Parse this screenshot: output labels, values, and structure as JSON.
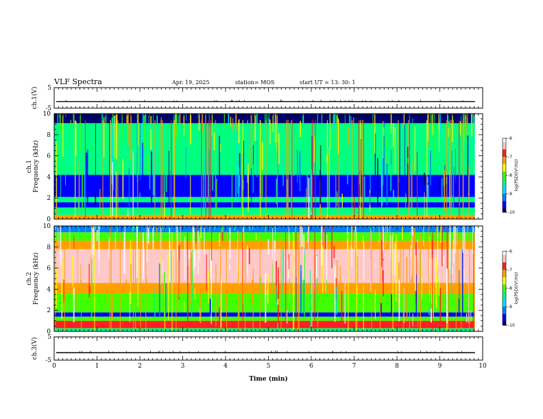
{
  "header": {
    "title": "VLF Spectra",
    "date": "Apr. 19, 2025",
    "station": "station= MOS",
    "start": "start  UT  =   13: 30: 1"
  },
  "colors": {
    "colormap": [
      "#00006a",
      "#0000ff",
      "#0080ff",
      "#00e0ff",
      "#00ff80",
      "#40ff00",
      "#ffff00",
      "#ffa000",
      "#ff2020",
      "#ffc8c8",
      "#ffffff"
    ],
    "trace": "#000000"
  },
  "chart_data": [
    {
      "type": "line",
      "ylabel": "ch.1(V)",
      "ylim": [
        -5,
        5
      ],
      "yticks": [
        "5",
        "-5"
      ],
      "xlim": [
        0,
        10
      ],
      "baseline": -1.8
    },
    {
      "type": "heatmap",
      "ylabel": "ch.1\nFrequency (kHz)",
      "ylabel_top": "ch.1",
      "ylabel_bottom": "Frequency (kHz)",
      "xlim": [
        0,
        10
      ],
      "ylim": [
        0,
        10
      ],
      "yticks": [
        "0",
        "2",
        "4",
        "6",
        "8",
        "10"
      ],
      "data_end_min": 9.82,
      "bands": [
        {
          "from": 0,
          "to": 0.4,
          "level": -7.2
        },
        {
          "from": 0.4,
          "to": 1.1,
          "level": -8.3
        },
        {
          "from": 1.1,
          "to": 1.6,
          "level": -9.6
        },
        {
          "from": 1.6,
          "to": 2.1,
          "level": -8.6
        },
        {
          "from": 2.1,
          "to": 4.2,
          "level": -9.5
        },
        {
          "from": 4.2,
          "to": 9.1,
          "level": -8.3
        },
        {
          "from": 9.1,
          "to": 10,
          "level": -9.9
        }
      ],
      "colorbar": {
        "label": "log(PSD)(V²/Hz)",
        "min": -10,
        "max": -6,
        "ticks": [
          "-6",
          "-7",
          "-8",
          "-9",
          "-10"
        ]
      }
    },
    {
      "type": "heatmap",
      "ylabel": "ch.2\nFrequency (kHz)",
      "ylabel_top": "ch.2",
      "ylabel_bottom": "Frequency (kHz)",
      "xlim": [
        0,
        10
      ],
      "ylim": [
        0,
        10
      ],
      "yticks": [
        "0",
        "2",
        "4",
        "6",
        "8",
        "10"
      ],
      "data_end_min": 9.82,
      "bands": [
        {
          "from": 0,
          "to": 0.3,
          "level": -8.4
        },
        {
          "from": 0.3,
          "to": 1.0,
          "level": -7.0
        },
        {
          "from": 1.0,
          "to": 1.4,
          "level": -8.2
        },
        {
          "from": 1.4,
          "to": 1.8,
          "level": -9.5
        },
        {
          "from": 1.8,
          "to": 3.6,
          "level": -8.0
        },
        {
          "from": 3.6,
          "to": 4.6,
          "level": -7.3
        },
        {
          "from": 4.6,
          "to": 7.8,
          "level": -6.4
        },
        {
          "from": 7.8,
          "to": 8.6,
          "level": -7.2
        },
        {
          "from": 8.6,
          "to": 9.4,
          "level": -8.2
        },
        {
          "from": 9.4,
          "to": 10,
          "level": -9.2
        }
      ],
      "colorbar": {
        "label": "log(PSD)(V²/Hz)",
        "min": -10,
        "max": -6,
        "ticks": [
          "-6",
          "-7",
          "-8",
          "-9",
          "-10"
        ]
      }
    },
    {
      "type": "line",
      "ylabel": "ch.3(V)",
      "ylim": [
        -5,
        5
      ],
      "yticks": [
        "5",
        "-5"
      ],
      "xlim": [
        0,
        10
      ],
      "baseline": -1.8,
      "xlabel": "Time (min)",
      "xticks": [
        "0",
        "1",
        "2",
        "3",
        "4",
        "5",
        "6",
        "7",
        "8",
        "9",
        "10"
      ]
    }
  ]
}
